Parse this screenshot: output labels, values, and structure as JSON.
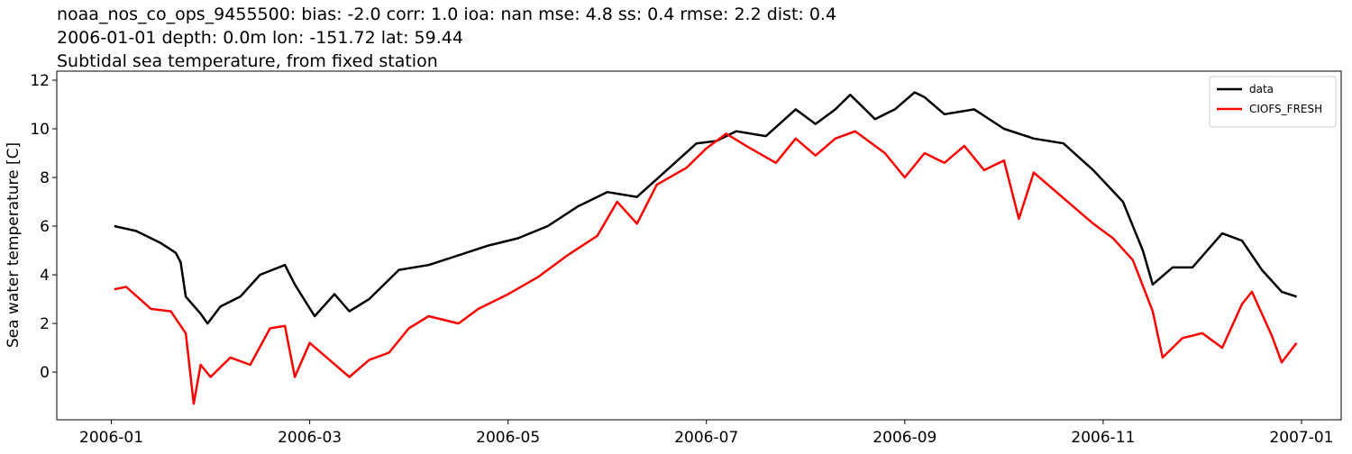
{
  "chart_data": {
    "type": "line",
    "title": "noaa_nos_co_ops_9455500: bias: -2.0  corr: 1.0  ioa: nan  mse: 4.8  ss: 0.4  rmse: 2.2  dist: 0.4",
    "subtitle": "2006-01-01 depth: 0.0m lon: -151.72 lat: 59.44",
    "subtitle2": "Subtidal sea temperature, from fixed station",
    "ylabel": "Sea water temperature [C]",
    "xlim": [
      -0.55,
      12.4
    ],
    "xticks": [
      {
        "value": 0,
        "label": "2006-01"
      },
      {
        "value": 2,
        "label": "2006-03"
      },
      {
        "value": 4,
        "label": "2006-05"
      },
      {
        "value": 6,
        "label": "2006-07"
      },
      {
        "value": 8,
        "label": "2006-09"
      },
      {
        "value": 10,
        "label": "2006-11"
      },
      {
        "value": 12,
        "label": "2007-01"
      }
    ],
    "ylim": [
      -1.96,
      12.37
    ],
    "yticks": [
      0,
      2,
      4,
      6,
      8,
      10,
      12
    ],
    "legend": "upper right",
    "series": [
      {
        "name": "data",
        "color": "#000000",
        "x": [
          0.03,
          0.25,
          0.5,
          0.65,
          0.7,
          0.75,
          0.9,
          0.97,
          1.1,
          1.3,
          1.5,
          1.75,
          1.85,
          2.05,
          2.25,
          2.4,
          2.6,
          2.9,
          3.2,
          3.5,
          3.8,
          4.1,
          4.4,
          4.7,
          5.0,
          5.3,
          5.6,
          5.9,
          6.1,
          6.3,
          6.6,
          6.9,
          7.1,
          7.3,
          7.45,
          7.7,
          7.9,
          8.1,
          8.2,
          8.4,
          8.7,
          9.0,
          9.3,
          9.6,
          9.9,
          10.2,
          10.4,
          10.5,
          10.7,
          10.9,
          11.2,
          11.4,
          11.6,
          11.8,
          11.95
        ],
        "values": [
          6.0,
          5.8,
          5.3,
          4.9,
          4.5,
          3.1,
          2.4,
          2.0,
          2.7,
          3.1,
          4.0,
          4.4,
          3.6,
          2.3,
          3.2,
          2.5,
          3.0,
          4.2,
          4.4,
          4.8,
          5.2,
          5.5,
          6.0,
          6.8,
          7.4,
          7.2,
          8.3,
          9.4,
          9.5,
          9.9,
          9.7,
          10.8,
          10.2,
          10.8,
          11.4,
          10.4,
          10.8,
          11.5,
          11.3,
          10.6,
          10.8,
          10.0,
          9.6,
          9.4,
          8.3,
          7.0,
          5.0,
          3.6,
          4.3,
          4.3,
          5.7,
          5.4,
          4.2,
          3.3,
          3.1
        ]
      },
      {
        "name": "CIOFS_FRESH",
        "color": "#ff0000",
        "x": [
          0.03,
          0.15,
          0.4,
          0.6,
          0.75,
          0.83,
          0.9,
          1.0,
          1.2,
          1.4,
          1.6,
          1.75,
          1.85,
          2.0,
          2.2,
          2.4,
          2.6,
          2.8,
          3.0,
          3.2,
          3.5,
          3.7,
          4.0,
          4.3,
          4.6,
          4.9,
          5.1,
          5.3,
          5.5,
          5.8,
          6.0,
          6.2,
          6.4,
          6.7,
          6.9,
          7.1,
          7.3,
          7.5,
          7.8,
          8.0,
          8.2,
          8.4,
          8.6,
          8.8,
          9.0,
          9.15,
          9.3,
          9.5,
          9.7,
          9.9,
          10.1,
          10.3,
          10.5,
          10.6,
          10.8,
          11.0,
          11.2,
          11.4,
          11.5,
          11.7,
          11.8,
          11.95
        ],
        "values": [
          3.4,
          3.5,
          2.6,
          2.5,
          1.6,
          -1.3,
          0.3,
          -0.2,
          0.6,
          0.3,
          1.8,
          1.9,
          -0.2,
          1.2,
          0.5,
          -0.2,
          0.5,
          0.8,
          1.8,
          2.3,
          2.0,
          2.6,
          3.2,
          3.9,
          4.8,
          5.6,
          7.0,
          6.1,
          7.7,
          8.4,
          9.2,
          9.8,
          9.3,
          8.6,
          9.6,
          8.9,
          9.6,
          9.9,
          9.0,
          8.0,
          9.0,
          8.6,
          9.3,
          8.3,
          8.7,
          6.3,
          8.2,
          7.5,
          6.8,
          6.1,
          5.5,
          4.6,
          2.5,
          0.6,
          1.4,
          1.6,
          1.0,
          2.8,
          3.3,
          1.5,
          0.4,
          1.2
        ]
      }
    ]
  }
}
